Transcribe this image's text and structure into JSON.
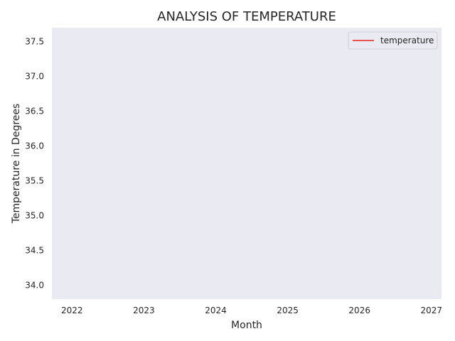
{
  "chart_data": {
    "type": "line",
    "title": "ANALYSIS OF TEMPERATURE",
    "xlabel": "Month",
    "ylabel": "Temperature in Degrees",
    "x_ticks": [
      "2022",
      "2023",
      "2024",
      "2025",
      "2026",
      "2027"
    ],
    "y_ticks": [
      "34.0",
      "34.5",
      "35.0",
      "35.5",
      "36.0",
      "36.5",
      "37.0",
      "37.5"
    ],
    "y_tick_values": [
      34.0,
      34.5,
      35.0,
      35.5,
      36.0,
      36.5,
      37.0,
      37.5
    ],
    "xlim": [
      2021.72,
      2027.14
    ],
    "ylim": [
      33.8,
      37.7
    ],
    "grid": false,
    "legend_position": "top-right",
    "series": [
      {
        "name": "temperature",
        "color": "#e8403a",
        "x": [],
        "y": []
      }
    ],
    "colors": {
      "plot_background": "#eaeaf2",
      "page_background": "#ffffff",
      "text": "#262626"
    }
  }
}
